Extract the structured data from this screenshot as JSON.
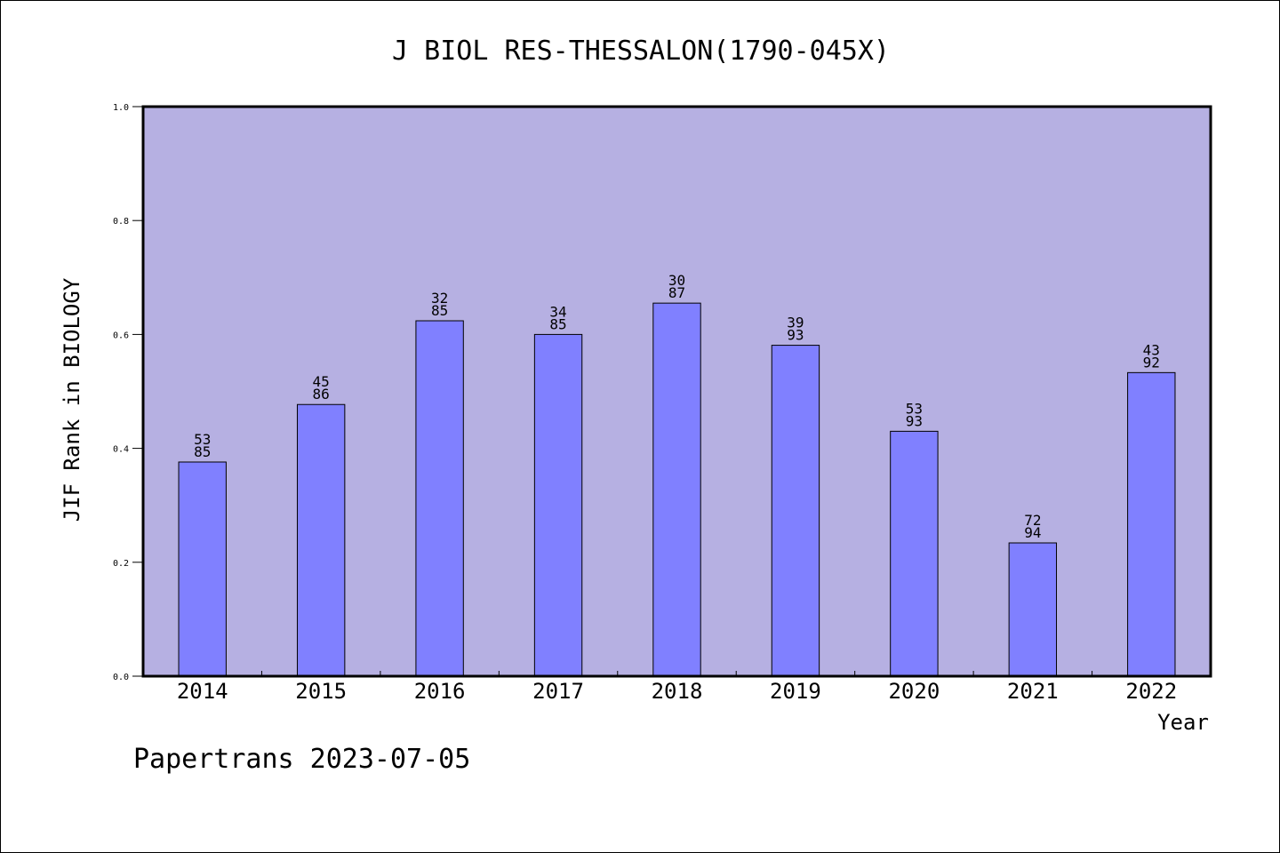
{
  "chart_data": {
    "type": "bar",
    "title": "J BIOL RES-THESSALON(1790-045X)",
    "xlabel": "Year",
    "ylabel": "JIF Rank in BIOLOGY",
    "ylim": [
      0.0,
      1.0
    ],
    "yticks": [
      "0.0",
      "0.2",
      "0.4",
      "0.6",
      "0.8",
      "1.0"
    ],
    "categories": [
      "2014",
      "2015",
      "2016",
      "2017",
      "2018",
      "2019",
      "2020",
      "2021",
      "2022"
    ],
    "values": [
      0.376,
      0.477,
      0.624,
      0.6,
      0.655,
      0.581,
      0.43,
      0.234,
      0.533
    ],
    "labels": [
      [
        "53",
        "85"
      ],
      [
        "45",
        "86"
      ],
      [
        "32",
        "85"
      ],
      [
        "34",
        "85"
      ],
      [
        "30",
        "87"
      ],
      [
        "39",
        "93"
      ],
      [
        "53",
        "93"
      ],
      [
        "72",
        "94"
      ],
      [
        "43",
        "92"
      ]
    ],
    "grid": false,
    "legend": "none",
    "colors": {
      "plot_background": "#b6b0e2",
      "bar": "#8080ff",
      "border": "#000000"
    }
  },
  "footer": {
    "text": "Papertrans 2023-07-05"
  }
}
